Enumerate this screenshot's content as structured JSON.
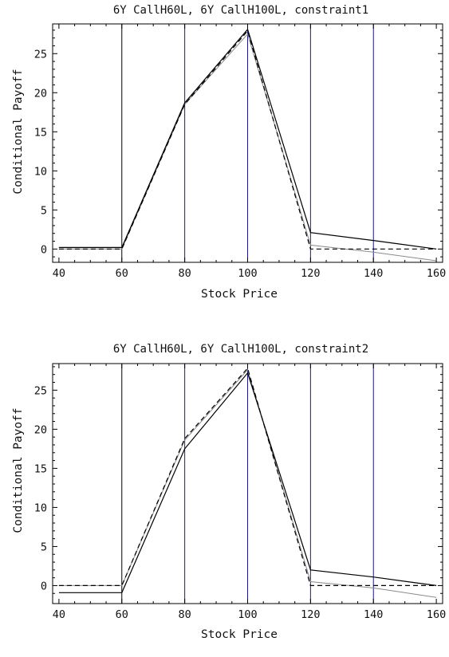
{
  "chart_data": [
    {
      "type": "line",
      "title": "6Y CallH60L, 6Y CallH100L, constraint1",
      "xlabel": "Stock Price",
      "ylabel": "Conditional Payoff",
      "xlim": [
        38,
        162
      ],
      "ylim": [
        -1.7,
        28.8
      ],
      "xticks": [
        40,
        60,
        80,
        100,
        120,
        140,
        160
      ],
      "yticks": [
        0,
        5,
        10,
        15,
        20,
        25
      ],
      "vlines": [
        {
          "x": 60,
          "color": "#000000"
        },
        {
          "x": 80,
          "color": "#1a1a8c"
        },
        {
          "x": 100,
          "color": "#1a1a8c"
        },
        {
          "x": 120,
          "color": "#1a1a8c"
        },
        {
          "x": 140,
          "color": "#1a1a8c"
        }
      ],
      "series": [
        {
          "style": "solid",
          "color": "#000000",
          "x": [
            40,
            60,
            80,
            100,
            120,
            140,
            160
          ],
          "y": [
            0.2,
            0.2,
            18.7,
            28.1,
            2.1,
            1.1,
            0.0
          ]
        },
        {
          "style": "solid",
          "color": "#8a8a8a",
          "x": [
            40,
            60,
            80,
            100,
            120,
            140,
            160
          ],
          "y": [
            0.0,
            0.0,
            18.5,
            27.5,
            0.5,
            -0.4,
            -1.5
          ]
        },
        {
          "style": "dashed",
          "color": "#000000",
          "x": [
            40,
            60,
            80,
            100,
            120,
            140,
            160
          ],
          "y": [
            0.0,
            0.0,
            18.5,
            27.9,
            0.0,
            0.0,
            0.0
          ]
        }
      ]
    },
    {
      "type": "line",
      "title": "6Y CallH60L, 6Y CallH100L, constraint2",
      "xlabel": "Stock Price",
      "ylabel": "Conditional Payoff",
      "xlim": [
        38,
        162
      ],
      "ylim": [
        -2.3,
        28.4
      ],
      "xticks": [
        40,
        60,
        80,
        100,
        120,
        140,
        160
      ],
      "yticks": [
        0,
        5,
        10,
        15,
        20,
        25
      ],
      "vlines": [
        {
          "x": 60,
          "color": "#000000"
        },
        {
          "x": 80,
          "color": "#1a1a8c"
        },
        {
          "x": 100,
          "color": "#1a1a8c"
        },
        {
          "x": 120,
          "color": "#1a1a8c"
        },
        {
          "x": 140,
          "color": "#1a1a8c"
        }
      ],
      "series": [
        {
          "style": "solid",
          "color": "#000000",
          "x": [
            40,
            60,
            80,
            100,
            120,
            140,
            160
          ],
          "y": [
            -0.9,
            -0.9,
            17.5,
            27.2,
            2.0,
            1.1,
            0.0
          ]
        },
        {
          "style": "solid",
          "color": "#8a8a8a",
          "x": [
            40,
            60,
            80,
            100,
            120,
            140,
            160
          ],
          "y": [
            0.0,
            0.0,
            18.6,
            27.6,
            0.5,
            -0.3,
            -1.5
          ]
        },
        {
          "style": "dashed",
          "color": "#000000",
          "x": [
            40,
            60,
            80,
            100,
            120,
            140,
            160
          ],
          "y": [
            0.0,
            0.0,
            18.8,
            27.8,
            0.0,
            0.0,
            0.0
          ]
        }
      ]
    }
  ]
}
